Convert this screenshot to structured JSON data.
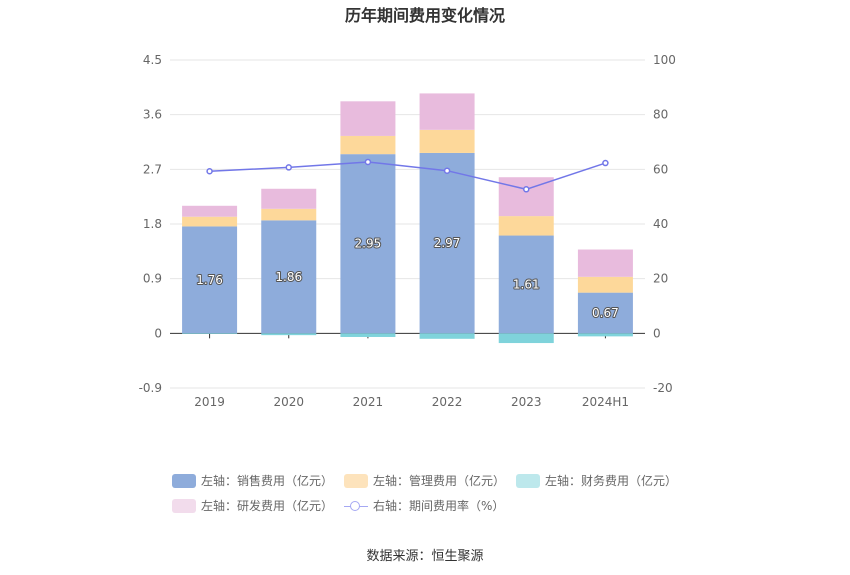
{
  "title": "历年期间费用变化情况",
  "source": "数据来源：恒生聚源",
  "chart_data": {
    "type": "bar",
    "stacked": true,
    "categories": [
      "2019",
      "2020",
      "2021",
      "2022",
      "2023",
      "2024H1"
    ],
    "left_axis": {
      "ylim": [
        -0.9,
        4.5
      ],
      "ticks": [
        "4.5",
        "3.6",
        "2.7",
        "1.8",
        "0.9",
        "0",
        "-0.9"
      ]
    },
    "right_axis": {
      "ylim": [
        -20,
        100
      ],
      "ticks": [
        "100",
        "80",
        "60",
        "40",
        "20",
        "0",
        "-20"
      ]
    },
    "series": [
      {
        "name": "左轴：销售费用（亿元）",
        "axis": "left",
        "color": "#8eacdb",
        "legend_color": "#8eacdb",
        "values": [
          1.76,
          1.86,
          2.95,
          2.97,
          1.61,
          0.67
        ],
        "labels": [
          "1.76",
          "1.86",
          "2.95",
          "2.97",
          "1.61",
          "0.67"
        ]
      },
      {
        "name": "左轴：管理费用（亿元）",
        "axis": "left",
        "color": "#fdd89a",
        "legend_color": "#fde3bc",
        "values": [
          0.16,
          0.19,
          0.3,
          0.38,
          0.32,
          0.26
        ]
      },
      {
        "name": "左轴：财务费用（亿元）",
        "axis": "left",
        "color": "#7fd3db",
        "legend_color": "#bde8ec",
        "values": [
          -0.01,
          -0.03,
          -0.06,
          -0.09,
          -0.16,
          -0.05
        ]
      },
      {
        "name": "左轴：研发费用（亿元）",
        "axis": "left",
        "color": "#e8bbdd",
        "legend_color": "#f2dcec",
        "values": [
          0.18,
          0.33,
          0.57,
          0.6,
          0.64,
          0.45
        ]
      },
      {
        "name": "右轴：期间费用率（%）",
        "axis": "right",
        "type": "line",
        "color": "#7277e8",
        "values": [
          59.3,
          60.7,
          62.7,
          59.5,
          52.7,
          62.3
        ]
      }
    ]
  }
}
